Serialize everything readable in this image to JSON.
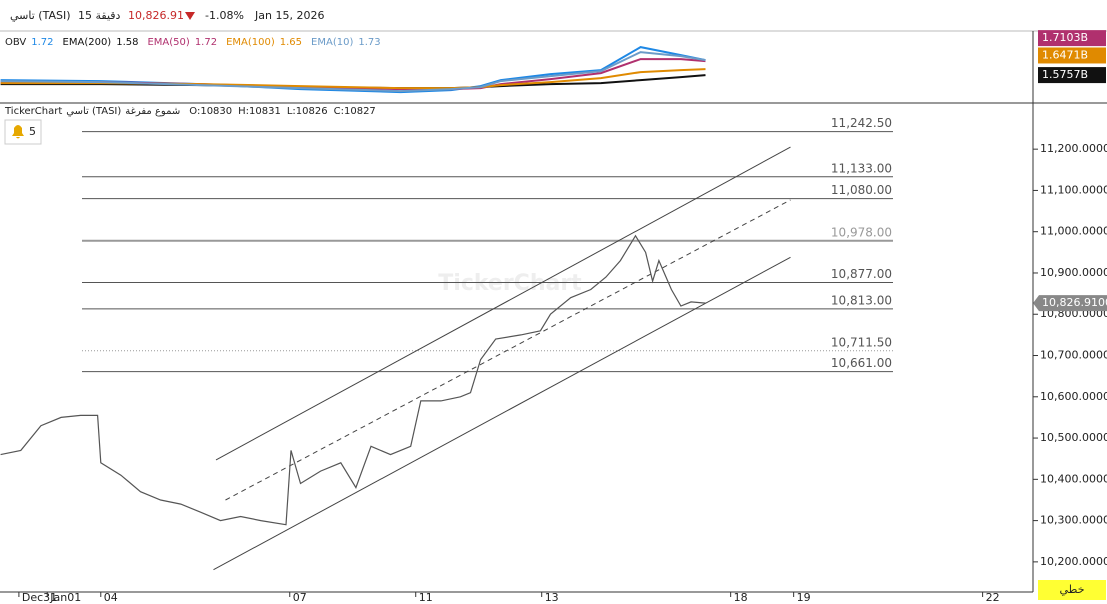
{
  "header": {
    "symbol": "تاسي (TASI)",
    "interval": "15 دقيقة",
    "price": "10,826.91",
    "change": "-1.08%",
    "date": "Jan 15, 2026"
  },
  "alerts": 5,
  "mode_button": "خطي",
  "chart_data": [
    {
      "type": "line",
      "xlim": [
        -1.6,
        14.8
      ],
      "ylim": [
        1.485,
        1.718
      ],
      "x": [
        -1.59,
        0,
        1.59,
        3.17,
        4.76,
        5.56,
        6.03,
        6.35,
        7.14,
        7.94,
        8.57,
        9.21,
        9.6
      ],
      "series": [
        {
          "name": "OBV",
          "value_label": "1.72",
          "color": "#1e88e5",
          "values": [
            1.5575,
            1.5539,
            1.543,
            1.5248,
            1.5139,
            1.5212,
            1.5357,
            1.5575,
            1.5793,
            1.5939,
            1.6775,
            1.6484,
            1.6302
          ]
        },
        {
          "name": "EMA(200)",
          "value_label": "1.58",
          "color": "#111111",
          "values": [
            1.543,
            1.543,
            1.5393,
            1.5321,
            1.5284,
            1.5284,
            1.5321,
            1.5357,
            1.543,
            1.5466,
            1.5575,
            1.5684,
            1.5757
          ]
        },
        {
          "name": "EMA(50)",
          "value_label": "1.72",
          "color": "#b0306e",
          "values": [
            1.5502,
            1.5502,
            1.543,
            1.5321,
            1.5248,
            1.5248,
            1.5284,
            1.543,
            1.5612,
            1.583,
            1.6339,
            1.6339,
            1.6266
          ]
        },
        {
          "name": "EMA(100)",
          "value_label": "1.65",
          "color": "#e08a00",
          "values": [
            1.5466,
            1.5466,
            1.543,
            1.5357,
            1.5284,
            1.5284,
            1.5321,
            1.5393,
            1.5502,
            1.5648,
            1.5866,
            1.5939,
            1.5975
          ]
        },
        {
          "name": "EMA(10)",
          "value_label": "1.73",
          "color": "#6b9bc8",
          "values": [
            1.5539,
            1.5502,
            1.5393,
            1.5284,
            1.5175,
            1.5248,
            1.5321,
            1.5539,
            1.5721,
            1.5902,
            1.6593,
            1.6448,
            1.6302
          ]
        }
      ],
      "badges": [
        {
          "value": 1.7103,
          "label": "1.7103B",
          "color": "#b0306e"
        },
        {
          "value": 1.6471,
          "label": "1.6471B",
          "color": "#e08a00"
        },
        {
          "value": 1.5757,
          "label": "1.5757B",
          "color": "#111111"
        }
      ]
    },
    {
      "type": "line",
      "title": "TickerChart",
      "symbol": "تاسي (TASI)",
      "style": "شموع مفرغة",
      "ohlc": [
        "O:10830",
        "H:10831",
        "L:10826",
        "C:10827"
      ],
      "watermark": "TickerChart",
      "color": "#555555",
      "xlim": [
        -1.6,
        14.8
      ],
      "ylim": [
        10127,
        11307
      ],
      "xticks": [
        {
          "value": -1.3,
          "label": "Dec31"
        },
        {
          "value": -0.85,
          "label": "Jan01"
        },
        {
          "value": 0,
          "label": "04"
        },
        {
          "value": 3,
          "label": "07"
        },
        {
          "value": 5,
          "label": "11"
        },
        {
          "value": 7,
          "label": "13"
        },
        {
          "value": 10,
          "label": "18"
        },
        {
          "value": 11,
          "label": "19"
        },
        {
          "value": 14,
          "label": "22"
        }
      ],
      "yticks": [
        {
          "value": 11200,
          "label": "11,200.0000"
        },
        {
          "value": 11100,
          "label": "11,100.0000"
        },
        {
          "value": 11000,
          "label": "11,000.0000"
        },
        {
          "value": 10900,
          "label": "10,900.0000"
        },
        {
          "value": 10800,
          "label": "10,800.0000"
        },
        {
          "value": 10700,
          "label": "10,700.0000"
        },
        {
          "value": 10600,
          "label": "10,600.0000"
        },
        {
          "value": 10500,
          "label": "10,500.0000"
        },
        {
          "value": 10400,
          "label": "10,400.0000"
        },
        {
          "value": 10300,
          "label": "10,300.0000"
        },
        {
          "value": 10200,
          "label": "10,200.0000"
        }
      ],
      "x": [
        -1.59,
        -1.27,
        -0.95,
        -0.63,
        -0.32,
        -0.05,
        0,
        0.32,
        0.63,
        0.95,
        1.27,
        1.59,
        1.9,
        2.22,
        2.54,
        2.94,
        3.02,
        3.17,
        3.49,
        3.81,
        4.05,
        4.29,
        4.6,
        4.92,
        5.08,
        5.4,
        5.71,
        5.87,
        6.03,
        6.27,
        6.67,
        6.98,
        7.14,
        7.46,
        7.78,
        8.02,
        8.25,
        8.49,
        8.65,
        8.76,
        8.86,
        9.06,
        9.21,
        9.37,
        9.6
      ],
      "values": [
        10460,
        10470,
        10530,
        10550,
        10555,
        10555,
        10440,
        10410,
        10370,
        10350,
        10340,
        10320,
        10300,
        10310,
        10300,
        10290,
        10470,
        10390,
        10420,
        10440,
        10380,
        10480,
        10460,
        10480,
        10590,
        10590,
        10600,
        10610,
        10690,
        10740,
        10750,
        10760,
        10800,
        10840,
        10860,
        10890,
        10930,
        10990,
        10950,
        10880,
        10930,
        10860,
        10820,
        10830,
        10827
      ],
      "levels": [
        {
          "value": 11242.5,
          "label": "11,242.50",
          "style": "solid"
        },
        {
          "value": 11133,
          "label": "11,133.00",
          "style": "solid"
        },
        {
          "value": 11080,
          "label": "11,080.00",
          "style": "solid"
        },
        {
          "value": 10978,
          "label": "10,978.00",
          "style": "bold"
        },
        {
          "value": 10877,
          "label": "10,877.00",
          "style": "solid"
        },
        {
          "value": 10813,
          "label": "10,813.00",
          "style": "solid"
        },
        {
          "value": 10711.5,
          "label": "10,711.50",
          "style": "dotted"
        },
        {
          "value": 10661,
          "label": "10,661.00",
          "style": "solid"
        }
      ],
      "trendlines": [
        {
          "x": [
            1.83,
            10.95
          ],
          "values": [
            10447,
            11205
          ],
          "dashed": false
        },
        {
          "x": [
            1.98,
            10.95
          ],
          "values": [
            10350,
            11077
          ],
          "dashed": true
        },
        {
          "x": [
            1.79,
            10.95
          ],
          "values": [
            10181,
            10938
          ],
          "dashed": false
        }
      ],
      "last_price": {
        "value": 10826.91,
        "label": "10,826.9100"
      }
    }
  ]
}
